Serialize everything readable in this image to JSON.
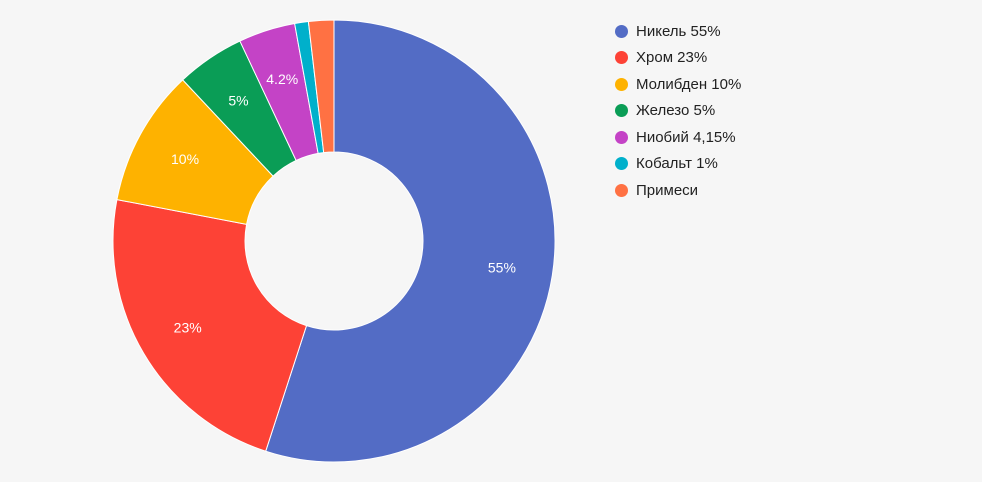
{
  "chart_data": {
    "type": "pie",
    "title": "",
    "donut": true,
    "legend_position": "right",
    "slices": [
      {
        "name": "Никель 55%",
        "value": 55,
        "label": "55%",
        "color": "#536cc5"
      },
      {
        "name": "Хром 23%",
        "value": 23,
        "label": "23%",
        "color": "#fd4236"
      },
      {
        "name": "Молибден 10%",
        "value": 10,
        "label": "10%",
        "color": "#feb200"
      },
      {
        "name": "Железо 5%",
        "value": 5,
        "label": "5%",
        "color": "#0a9d56"
      },
      {
        "name": "Ниобий 4,15%",
        "value": 4.15,
        "label": "4.2%",
        "color": "#c443c6"
      },
      {
        "name": "Кобальт 1%",
        "value": 1,
        "label": "",
        "color": "#00b0cb"
      },
      {
        "name": "Примеси",
        "value": 1.85,
        "label": "",
        "color": "#ff7143"
      }
    ]
  }
}
